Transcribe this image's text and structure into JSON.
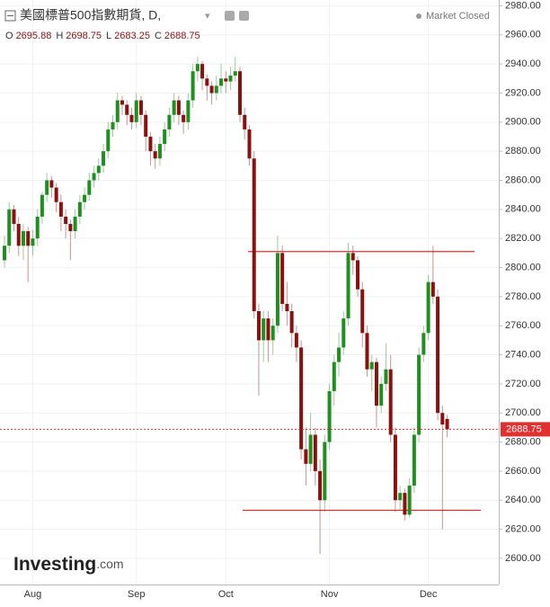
{
  "chart_data": {
    "type": "candlestick",
    "title": "美國標普500指數期貨, D,",
    "status": "Market Closed",
    "ohlc_legend": [
      {
        "label": "O",
        "value": 2695.88
      },
      {
        "label": "H",
        "value": 2698.75
      },
      {
        "label": "L",
        "value": 2683.25
      },
      {
        "label": "C",
        "value": 2688.75
      }
    ],
    "watermark": "Investing",
    "watermark_suffix": ".com",
    "last_price": 2688.75,
    "horizontal_lines": [
      2811,
      2633
    ],
    "up_color": "#1f8f1f",
    "down_color": "#8b1010",
    "line_color": "#e03030",
    "grid": true,
    "ylim": [
      2582,
      2984
    ],
    "yticks": [
      {
        "value": 2600,
        "label": "2600.00"
      },
      {
        "value": 2620,
        "label": "2620.00"
      },
      {
        "value": 2640,
        "label": "2640.00"
      },
      {
        "value": 2660,
        "label": "2660.00"
      },
      {
        "value": 2680,
        "label": "2680.00"
      },
      {
        "value": 2700,
        "label": "2700.00"
      },
      {
        "value": 2720,
        "label": "2720.00"
      },
      {
        "value": 2740,
        "label": "2740.00"
      },
      {
        "value": 2760,
        "label": "2760.00"
      },
      {
        "value": 2780,
        "label": "2780.00"
      },
      {
        "value": 2800,
        "label": "2800.00"
      },
      {
        "value": 2820,
        "label": "2820.00"
      },
      {
        "value": 2840,
        "label": "2840.00"
      },
      {
        "value": 2860,
        "label": "2860.00"
      },
      {
        "value": 2880,
        "label": "2880.00"
      },
      {
        "value": 2900,
        "label": "2900.00"
      },
      {
        "value": 2920,
        "label": "2920.00"
      },
      {
        "value": 2940,
        "label": "2940.00"
      },
      {
        "value": 2960,
        "label": "2960.00"
      },
      {
        "value": 2980,
        "label": "2980.00"
      }
    ],
    "categories": [
      null,
      null,
      null,
      null,
      null,
      null,
      "Aug",
      null,
      null,
      null,
      null,
      null,
      null,
      null,
      null,
      null,
      null,
      null,
      null,
      null,
      null,
      null,
      null,
      null,
      null,
      null,
      null,
      null,
      "Sep",
      null,
      null,
      null,
      null,
      null,
      null,
      null,
      null,
      null,
      null,
      null,
      null,
      null,
      null,
      null,
      null,
      null,
      null,
      "Oct",
      null,
      null,
      null,
      null,
      null,
      null,
      null,
      null,
      null,
      null,
      null,
      null,
      null,
      null,
      null,
      null,
      null,
      null,
      null,
      null,
      null,
      "Nov",
      null,
      null,
      null,
      null,
      null,
      null,
      null,
      null,
      null,
      null,
      null,
      null,
      null,
      null,
      null,
      null,
      null,
      null,
      null,
      null,
      "Dec",
      null,
      null,
      null,
      null
    ],
    "ohlc": [
      [
        2805,
        2822,
        2800,
        2815
      ],
      [
        2815,
        2845,
        2810,
        2840
      ],
      [
        2840,
        2843,
        2825,
        2830
      ],
      [
        2830,
        2835,
        2808,
        2815
      ],
      [
        2815,
        2830,
        2805,
        2825
      ],
      [
        2825,
        2828,
        2790,
        2815
      ],
      [
        2815,
        2826,
        2808,
        2820
      ],
      [
        2820,
        2840,
        2815,
        2835
      ],
      [
        2835,
        2852,
        2830,
        2850
      ],
      [
        2850,
        2865,
        2845,
        2860
      ],
      [
        2860,
        2863,
        2848,
        2855
      ],
      [
        2855,
        2858,
        2838,
        2845
      ],
      [
        2845,
        2850,
        2825,
        2835
      ],
      [
        2835,
        2840,
        2820,
        2830
      ],
      [
        2830,
        2833,
        2805,
        2825
      ],
      [
        2825,
        2840,
        2820,
        2835
      ],
      [
        2835,
        2850,
        2830,
        2845
      ],
      [
        2845,
        2855,
        2840,
        2850
      ],
      [
        2850,
        2865,
        2846,
        2860
      ],
      [
        2860,
        2870,
        2855,
        2865
      ],
      [
        2865,
        2875,
        2860,
        2870
      ],
      [
        2870,
        2885,
        2865,
        2880
      ],
      [
        2880,
        2900,
        2875,
        2895
      ],
      [
        2895,
        2905,
        2890,
        2900
      ],
      [
        2900,
        2920,
        2895,
        2915
      ],
      [
        2915,
        2918,
        2905,
        2912
      ],
      [
        2912,
        2915,
        2898,
        2905
      ],
      [
        2905,
        2910,
        2895,
        2900
      ],
      [
        2900,
        2920,
        2896,
        2915
      ],
      [
        2915,
        2918,
        2898,
        2905
      ],
      [
        2905,
        2908,
        2880,
        2890
      ],
      [
        2890,
        2893,
        2870,
        2880
      ],
      [
        2880,
        2885,
        2868,
        2875
      ],
      [
        2875,
        2890,
        2870,
        2885
      ],
      [
        2885,
        2900,
        2880,
        2895
      ],
      [
        2895,
        2910,
        2890,
        2905
      ],
      [
        2905,
        2920,
        2900,
        2915
      ],
      [
        2915,
        2918,
        2898,
        2905
      ],
      [
        2905,
        2908,
        2892,
        2900
      ],
      [
        2900,
        2920,
        2895,
        2915
      ],
      [
        2915,
        2940,
        2910,
        2935
      ],
      [
        2935,
        2945,
        2928,
        2940
      ],
      [
        2940,
        2942,
        2922,
        2930
      ],
      [
        2930,
        2933,
        2915,
        2925
      ],
      [
        2925,
        2928,
        2912,
        2920
      ],
      [
        2920,
        2932,
        2915,
        2925
      ],
      [
        2925,
        2940,
        2920,
        2930
      ],
      [
        2930,
        2935,
        2920,
        2928
      ],
      [
        2928,
        2938,
        2922,
        2932
      ],
      [
        2932,
        2945,
        2928,
        2935
      ],
      [
        2935,
        2938,
        2900,
        2905
      ],
      [
        2905,
        2910,
        2888,
        2895
      ],
      [
        2895,
        2898,
        2870,
        2875
      ],
      [
        2875,
        2880,
        2765,
        2770
      ],
      [
        2770,
        2775,
        2712,
        2750
      ],
      [
        2750,
        2770,
        2735,
        2765
      ],
      [
        2765,
        2770,
        2735,
        2750
      ],
      [
        2750,
        2765,
        2740,
        2760
      ],
      [
        2760,
        2822,
        2755,
        2810
      ],
      [
        2810,
        2815,
        2770,
        2775
      ],
      [
        2775,
        2790,
        2760,
        2770
      ],
      [
        2770,
        2775,
        2745,
        2755
      ],
      [
        2755,
        2760,
        2735,
        2745
      ],
      [
        2745,
        2750,
        2668,
        2675
      ],
      [
        2675,
        2690,
        2650,
        2665
      ],
      [
        2665,
        2700,
        2660,
        2685
      ],
      [
        2685,
        2690,
        2650,
        2660
      ],
      [
        2660,
        2668,
        2603,
        2640
      ],
      [
        2640,
        2685,
        2632,
        2680
      ],
      [
        2680,
        2720,
        2675,
        2715
      ],
      [
        2715,
        2740,
        2705,
        2735
      ],
      [
        2735,
        2755,
        2725,
        2745
      ],
      [
        2745,
        2770,
        2740,
        2765
      ],
      [
        2765,
        2817,
        2760,
        2810
      ],
      [
        2810,
        2815,
        2795,
        2805
      ],
      [
        2805,
        2808,
        2780,
        2785
      ],
      [
        2785,
        2790,
        2745,
        2755
      ],
      [
        2755,
        2760,
        2725,
        2730
      ],
      [
        2730,
        2740,
        2715,
        2735
      ],
      [
        2735,
        2738,
        2690,
        2705
      ],
      [
        2705,
        2725,
        2700,
        2720
      ],
      [
        2720,
        2748,
        2715,
        2730
      ],
      [
        2730,
        2740,
        2680,
        2685
      ],
      [
        2685,
        2690,
        2632,
        2640
      ],
      [
        2640,
        2650,
        2633,
        2645
      ],
      [
        2645,
        2648,
        2626,
        2630
      ],
      [
        2630,
        2655,
        2628,
        2650
      ],
      [
        2650,
        2690,
        2645,
        2685
      ],
      [
        2685,
        2745,
        2680,
        2740
      ],
      [
        2740,
        2760,
        2735,
        2755
      ],
      [
        2755,
        2795,
        2750,
        2790
      ],
      [
        2790,
        2815,
        2775,
        2780
      ],
      [
        2780,
        2785,
        2695,
        2700
      ],
      [
        2700,
        2705,
        2620,
        2692
      ],
      [
        2695.88,
        2698.75,
        2683.25,
        2688.75
      ]
    ]
  }
}
